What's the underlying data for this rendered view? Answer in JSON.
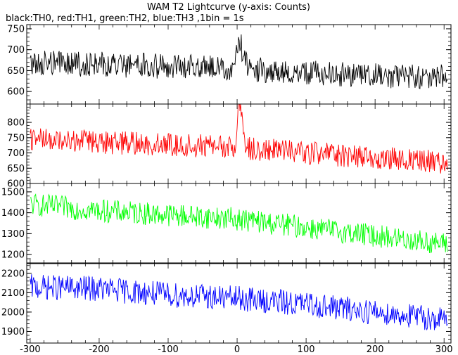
{
  "title": "WAM T2 Lightcurve (y-axis: Counts)",
  "subtitle": "black:TH0, red:TH1, green:TH2, blue:TH3 ,1bin = 1s",
  "chart_data": [
    {
      "type": "line",
      "name": "TH0",
      "color": "#000000",
      "xlim": [
        -305,
        310
      ],
      "ylim": [
        570,
        760
      ],
      "yticks": [
        600,
        650,
        700,
        750
      ],
      "baseline": [
        [
          -300,
          668
        ],
        [
          -200,
          665
        ],
        [
          -100,
          660
        ],
        [
          0,
          655
        ],
        [
          100,
          645
        ],
        [
          200,
          638
        ],
        [
          300,
          635
        ]
      ],
      "noise_amp": 30,
      "spikes": [
        [
          0,
          50
        ],
        [
          5,
          45
        ],
        [
          10,
          30
        ]
      ]
    },
    {
      "type": "line",
      "name": "TH1",
      "color": "#ff0000",
      "xlim": [
        -305,
        310
      ],
      "ylim": [
        600,
        860
      ],
      "yticks": [
        600,
        650,
        700,
        750,
        800
      ],
      "baseline": [
        [
          -300,
          745
        ],
        [
          -200,
          735
        ],
        [
          -100,
          728
        ],
        [
          0,
          718
        ],
        [
          100,
          700
        ],
        [
          200,
          685
        ],
        [
          300,
          670
        ]
      ],
      "noise_amp": 38,
      "spikes": [
        [
          3,
          110
        ],
        [
          5,
          90
        ]
      ]
    },
    {
      "type": "line",
      "name": "TH2",
      "color": "#00ff00",
      "xlim": [
        -305,
        310
      ],
      "ylim": [
        1160,
        1540
      ],
      "yticks": [
        1200,
        1300,
        1400,
        1500
      ],
      "baseline": [
        [
          -300,
          1440
        ],
        [
          -200,
          1410
        ],
        [
          -100,
          1390
        ],
        [
          0,
          1370
        ],
        [
          100,
          1330
        ],
        [
          200,
          1290
        ],
        [
          300,
          1250
        ]
      ],
      "noise_amp": 55,
      "spikes": []
    },
    {
      "type": "line",
      "name": "TH3",
      "color": "#0000ff",
      "xlim": [
        -305,
        310
      ],
      "ylim": [
        1840,
        2250
      ],
      "yticks": [
        1900,
        2000,
        2100,
        2200
      ],
      "baseline": [
        [
          -300,
          2130
        ],
        [
          -200,
          2120
        ],
        [
          -100,
          2090
        ],
        [
          0,
          2070
        ],
        [
          100,
          2040
        ],
        [
          200,
          2000
        ],
        [
          300,
          1960
        ]
      ],
      "noise_amp": 65,
      "spikes": []
    }
  ],
  "xticks": [
    -300,
    -200,
    -100,
    0,
    100,
    200,
    300
  ]
}
